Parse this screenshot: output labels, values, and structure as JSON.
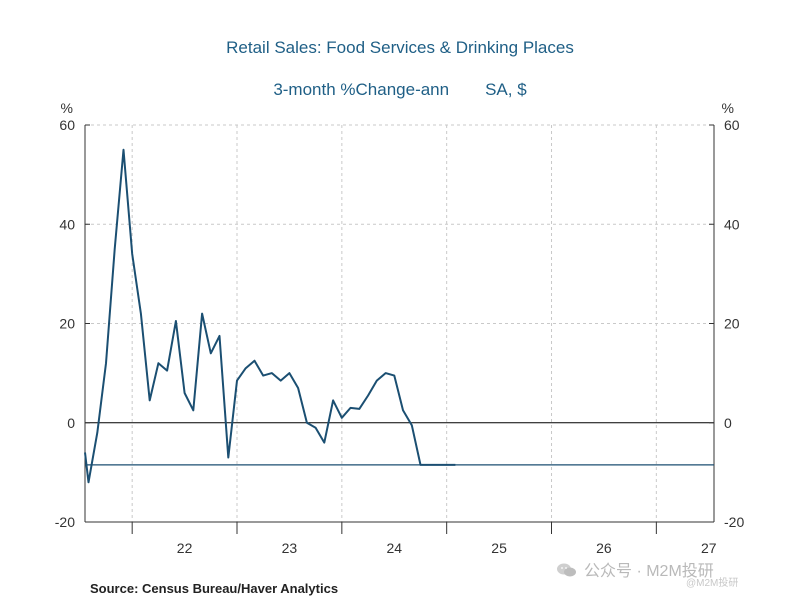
{
  "header": {
    "title": "Retail Sales: Food Services & Drinking Places",
    "subtitle_measure": "3-month %Change-ann",
    "subtitle_units": "SA, $"
  },
  "footer": {
    "source": "Source:  Census Bureau/Haver Analytics",
    "watermark": "公众号 · M2M投研",
    "watermark_small": "@M2M投研"
  },
  "colors": {
    "series": "#1b4f72",
    "title": "#1f5f86",
    "grid": "#c9c9c9",
    "zero_line": "#000000"
  },
  "chart_data": {
    "type": "line",
    "title": "Retail Sales: Food Services & Drinking Places",
    "subtitle": "3-month %Change-ann    SA, $",
    "ylabel_left": "%",
    "ylabel_right": "%",
    "ylim": [
      -20,
      60
    ],
    "yticks": [
      -20,
      0,
      20,
      40,
      60
    ],
    "x_range": [
      2021.55,
      2027.55
    ],
    "xticks": [
      {
        "label": "22",
        "x": 2022.5
      },
      {
        "label": "23",
        "x": 2023.5
      },
      {
        "label": "24",
        "x": 2024.5
      },
      {
        "label": "25",
        "x": 2025.5
      },
      {
        "label": "26",
        "x": 2026.5
      },
      {
        "label": "27",
        "x": 2027.5
      }
    ],
    "year_boundaries": [
      2022,
      2023,
      2024,
      2025,
      2026,
      2027
    ],
    "grid": true,
    "zero_line": true,
    "series": [
      {
        "x": [
          2021.55,
          2021.583,
          2021.667,
          2021.75,
          2021.833,
          2021.917,
          2022.0,
          2022.083,
          2022.167,
          2022.25,
          2022.333,
          2022.417,
          2022.5,
          2022.583,
          2022.667,
          2022.75,
          2022.833,
          2022.917,
          2023.0,
          2023.083,
          2023.167,
          2023.25,
          2023.333,
          2023.417,
          2023.5,
          2023.583,
          2023.667,
          2023.75,
          2023.833,
          2023.917,
          2024.0,
          2024.083,
          2024.167,
          2024.25,
          2024.333,
          2024.417,
          2024.5,
          2024.583,
          2024.667,
          2024.75,
          2024.833,
          2024.917,
          2025.0,
          2025.083
        ],
        "y": [
          -6,
          -12,
          -2,
          12,
          35,
          55,
          34,
          22,
          4.5,
          12,
          10.5,
          20.5,
          6,
          2.5,
          22,
          14,
          17.5,
          -7,
          8.5,
          11,
          12.5,
          9.5,
          10,
          8.5,
          10,
          7,
          0,
          -1,
          -4,
          4.5,
          1,
          3,
          2.8,
          5.5,
          8.5,
          10,
          9.5,
          2.5,
          -0.5,
          -8.5,
          -8.5,
          -8.5,
          -8.5,
          -8.5
        ]
      },
      {
        "name": "",
        "x": [
          2021.55,
          2027.55
        ],
        "y": [
          -8.5,
          -8.5
        ]
      }
    ]
  }
}
